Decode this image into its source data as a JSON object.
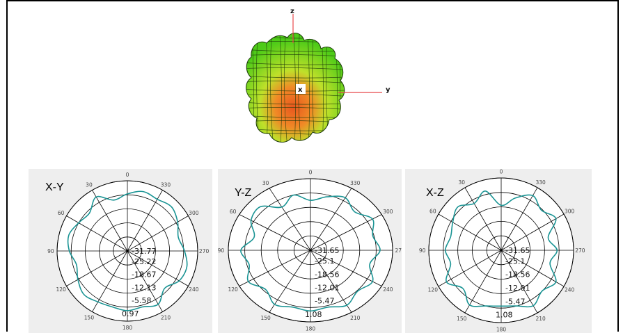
{
  "pattern_3d": {
    "axis_labels": {
      "z": "z",
      "y": "y",
      "x": "x"
    },
    "colors": {
      "peak": "#e8561e",
      "mid": "#f2c230",
      "low": "#59d21a",
      "axis": "#e8484b"
    }
  },
  "chart_data": [
    {
      "type": "polar-line",
      "title": "X-Y",
      "angle_labels": [
        "0",
        "30",
        "60",
        "90",
        "120",
        "150",
        "180",
        "210",
        "240",
        "270",
        "300",
        "330"
      ],
      "ring_labels": [
        "-31.77",
        "-25.22",
        "-18.67",
        "-12.13",
        "-5.58",
        "0.97"
      ],
      "rlim": [
        -31.77,
        0.97
      ],
      "line_color": "#1a9494",
      "series": [
        {
          "angles_deg": [
            0,
            15,
            30,
            45,
            60,
            75,
            90,
            105,
            120,
            135,
            150,
            165,
            180,
            195,
            210,
            225,
            240,
            255,
            270,
            285,
            300,
            315,
            330,
            345
          ],
          "values_db": [
            -6.5,
            -9,
            -3.5,
            -8.5,
            -7,
            -4.5,
            -6,
            -9,
            -6.5,
            -4,
            -5.5,
            -6,
            -5,
            -6,
            -4,
            -9,
            -5,
            -4,
            -6.5,
            -9,
            -6,
            -3.5,
            -5,
            -4
          ]
        }
      ]
    },
    {
      "type": "polar-line",
      "title": "Y-Z",
      "angle_labels": [
        "0",
        "30",
        "60",
        "90",
        "120",
        "150",
        "180",
        "210",
        "240",
        "270",
        "300",
        "330"
      ],
      "ring_labels": [
        "-31.65",
        "-25.1",
        "-18.56",
        "-12.01",
        "-5.47",
        "1.08"
      ],
      "rlim": [
        -31.65,
        1.08
      ],
      "line_color": "#1a9494",
      "series": [
        {
          "angles_deg": [
            0,
            15,
            30,
            45,
            60,
            75,
            90,
            105,
            120,
            135,
            150,
            165,
            180,
            195,
            210,
            225,
            240,
            255,
            270,
            285,
            300,
            315,
            330,
            345
          ],
          "values_db": [
            -11,
            -7,
            -11,
            -4.5,
            -5.5,
            -10.5,
            -5,
            -8,
            -4,
            -8,
            -4,
            -6,
            -5,
            -6,
            -3.5,
            -6.5,
            -4,
            -9,
            -5,
            -7.5,
            -4,
            -8.5,
            -5,
            -8
          ]
        }
      ]
    },
    {
      "type": "polar-line",
      "title": "X-Z",
      "angle_labels": [
        "0",
        "30",
        "60",
        "90",
        "120",
        "150",
        "180",
        "210",
        "240",
        "270",
        "300",
        "330"
      ],
      "ring_labels": [
        "-31.65",
        "-25.1",
        "-18.56",
        "-12.01",
        "-5.47",
        "1.08"
      ],
      "rlim": [
        -31.65,
        1.08
      ],
      "line_color": "#1a9494",
      "series": [
        {
          "angles_deg": [
            0,
            15,
            30,
            45,
            60,
            75,
            90,
            105,
            120,
            135,
            150,
            165,
            180,
            195,
            210,
            225,
            240,
            255,
            270,
            285,
            300,
            315,
            330,
            345
          ],
          "values_db": [
            -14,
            -5,
            -9,
            -5,
            -8,
            -10,
            -8,
            -10,
            -4,
            -9,
            -4,
            -7,
            -8,
            -7,
            -3.5,
            -7,
            -4,
            -11,
            -8,
            -12,
            -4,
            -7.5,
            -4,
            -9
          ]
        }
      ]
    }
  ]
}
